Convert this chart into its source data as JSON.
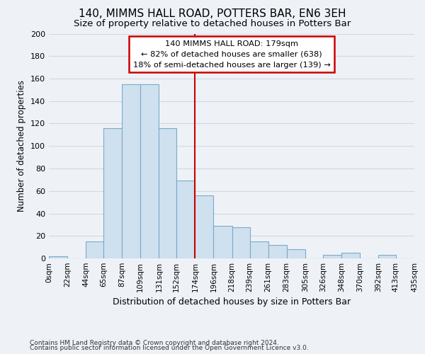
{
  "title": "140, MIMMS HALL ROAD, POTTERS BAR, EN6 3EH",
  "subtitle": "Size of property relative to detached houses in Potters Bar",
  "xlabel": "Distribution of detached houses by size in Potters Bar",
  "ylabel": "Number of detached properties",
  "bin_edges": [
    0,
    22,
    44,
    65,
    87,
    109,
    131,
    152,
    174,
    196,
    218,
    239,
    261,
    283,
    305,
    326,
    348,
    370,
    392,
    413,
    435
  ],
  "bin_counts": [
    2,
    0,
    15,
    116,
    155,
    155,
    116,
    69,
    56,
    29,
    28,
    15,
    12,
    8,
    0,
    3,
    5,
    0,
    3,
    0
  ],
  "bar_color": "#cfe0ef",
  "bar_edge_color": "#7aaac8",
  "vline_x": 174,
  "vline_color": "#cc0000",
  "annotation_text": "140 MIMMS HALL ROAD: 179sqm\n← 82% of detached houses are smaller (638)\n18% of semi-detached houses are larger (139) →",
  "annotation_box_color": "#ffffff",
  "annotation_box_edge_color": "#cc0000",
  "ylim": [
    0,
    200
  ],
  "yticks": [
    0,
    20,
    40,
    60,
    80,
    100,
    120,
    140,
    160,
    180,
    200
  ],
  "tick_labels": [
    "0sqm",
    "22sqm",
    "44sqm",
    "65sqm",
    "87sqm",
    "109sqm",
    "131sqm",
    "152sqm",
    "174sqm",
    "196sqm",
    "218sqm",
    "239sqm",
    "261sqm",
    "283sqm",
    "305sqm",
    "326sqm",
    "348sqm",
    "370sqm",
    "392sqm",
    "413sqm",
    "435sqm"
  ],
  "footnote1": "Contains HM Land Registry data © Crown copyright and database right 2024.",
  "footnote2": "Contains public sector information licensed under the Open Government Licence v3.0.",
  "title_fontsize": 11,
  "subtitle_fontsize": 9.5,
  "xlabel_fontsize": 9,
  "ylabel_fontsize": 8.5,
  "tick_fontsize": 7.5,
  "footnote_fontsize": 6.5,
  "background_color": "#eef2f7",
  "grid_color": "#d0d8e4"
}
